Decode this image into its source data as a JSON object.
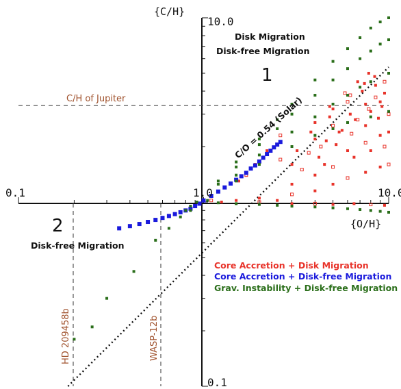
{
  "chart_data": {
    "type": "scatter",
    "x_axis": {
      "label": "{O/H}",
      "scale": "log",
      "range": [
        0.1,
        10.0
      ],
      "ticks": [
        "0.1",
        "1.0",
        "10.0"
      ]
    },
    "y_axis": {
      "label": "{C/H}",
      "scale": "log",
      "range": [
        0.1,
        10.0
      ],
      "ticks": [
        "10.0",
        "1.0",
        "0.1"
      ]
    },
    "annotations": {
      "upper_title_1": "Disk Migration",
      "upper_title_2": "Disk-free Migration",
      "region_1": "1",
      "region_2": "2",
      "lower_left": "Disk-free Migration",
      "solar_line": "C/O = 0.54 (Solar)",
      "jupiter": "C/H of Jupiter",
      "hd": "HD 209458b",
      "wasp": "WASP-12b"
    },
    "reference_lines": {
      "jupiter_ch": 3.0,
      "hd_209458b_oh": 0.2,
      "wasp_12b_oh": 0.6,
      "solar_co": 0.54
    },
    "legend": [
      {
        "label": "Core Accretion + Disk Migration",
        "color": "#e8332a"
      },
      {
        "label": "Core Accretion + Disk-free Migration",
        "color": "#1a1adc"
      },
      {
        "label": "Grav. Instability + Disk-free Migration",
        "color": "#2a6e1a"
      }
    ],
    "series": [
      {
        "name": "Core Accretion + Disk Migration",
        "color": "#e8332a",
        "points": [
          [
            1.1,
            1.02
          ],
          [
            1.25,
            1.0
          ],
          [
            1.5,
            1.02
          ],
          [
            2.0,
            1.0
          ],
          [
            2.5,
            1.02
          ],
          [
            3.0,
            0.98
          ],
          [
            4.0,
            0.98
          ],
          [
            5.0,
            0.97
          ],
          [
            6.5,
            0.98
          ],
          [
            8.0,
            0.97
          ],
          [
            9.5,
            0.96
          ],
          [
            2.0,
            1.05
          ],
          [
            3.0,
            1.1
          ],
          [
            4.0,
            1.15
          ],
          [
            5.0,
            1.25
          ],
          [
            6.0,
            1.35
          ],
          [
            7.5,
            1.45
          ],
          [
            9.0,
            1.55
          ],
          [
            10.0,
            1.6
          ],
          [
            3.0,
            1.25
          ],
          [
            4.0,
            1.4
          ],
          [
            5.0,
            1.55
          ],
          [
            6.5,
            1.75
          ],
          [
            8.0,
            1.9
          ],
          [
            9.5,
            2.0
          ],
          [
            4.5,
            1.6
          ],
          [
            6.0,
            1.9
          ],
          [
            7.5,
            2.1
          ],
          [
            9.0,
            2.3
          ],
          [
            10.0,
            2.4
          ],
          [
            2.6,
            1.7
          ],
          [
            3.2,
            1.9
          ],
          [
            4.0,
            2.2
          ],
          [
            5.0,
            2.6
          ],
          [
            6.2,
            3.0
          ],
          [
            7.5,
            3.4
          ],
          [
            8.5,
            3.7
          ],
          [
            9.5,
            3.9
          ],
          [
            3.0,
            1.6
          ],
          [
            3.7,
            1.85
          ],
          [
            4.6,
            2.15
          ],
          [
            5.6,
            2.45
          ],
          [
            6.8,
            2.8
          ],
          [
            8.0,
            3.1
          ],
          [
            9.2,
            3.3
          ],
          [
            3.4,
            1.5
          ],
          [
            4.2,
            1.75
          ],
          [
            5.2,
            2.05
          ],
          [
            6.3,
            2.35
          ],
          [
            7.5,
            2.6
          ],
          [
            8.8,
            2.85
          ],
          [
            10.0,
            3.0
          ],
          [
            3.8,
            2.4
          ],
          [
            4.8,
            2.9
          ],
          [
            6.0,
            3.5
          ],
          [
            7.2,
            4.0
          ],
          [
            8.5,
            4.3
          ],
          [
            9.5,
            4.5
          ],
          [
            4.0,
            2.7
          ],
          [
            5.0,
            3.2
          ],
          [
            6.2,
            3.8
          ],
          [
            7.4,
            4.4
          ],
          [
            8.4,
            4.8
          ],
          [
            4.3,
            2.0
          ],
          [
            5.4,
            2.4
          ],
          [
            6.6,
            2.8
          ],
          [
            7.8,
            3.2
          ],
          [
            9.0,
            3.5
          ],
          [
            4.8,
            3.3
          ],
          [
            5.8,
            3.9
          ],
          [
            6.8,
            4.5
          ],
          [
            7.8,
            5.0
          ],
          [
            2.6,
            2.3
          ],
          [
            2.2,
            1.9
          ],
          [
            1.9,
            1.6
          ],
          [
            1.7,
            1.4
          ],
          [
            1.55,
            1.3
          ]
        ]
      },
      {
        "name": "Core Accretion + Disk-free Migration",
        "color": "#1a1adc",
        "points": [
          [
            0.35,
            0.72
          ],
          [
            0.4,
            0.74
          ],
          [
            0.45,
            0.76
          ],
          [
            0.5,
            0.78
          ],
          [
            0.55,
            0.8
          ],
          [
            0.6,
            0.82
          ],
          [
            0.65,
            0.84
          ],
          [
            0.7,
            0.86
          ],
          [
            0.75,
            0.88
          ],
          [
            0.8,
            0.9
          ],
          [
            0.85,
            0.92
          ],
          [
            0.9,
            0.95
          ],
          [
            0.95,
            0.98
          ],
          [
            1.0,
            1.02
          ],
          [
            1.1,
            1.08
          ],
          [
            1.2,
            1.14
          ],
          [
            1.3,
            1.2
          ],
          [
            1.4,
            1.26
          ],
          [
            1.5,
            1.32
          ],
          [
            1.6,
            1.38
          ],
          [
            1.7,
            1.44
          ],
          [
            1.8,
            1.52
          ],
          [
            1.9,
            1.58
          ],
          [
            2.0,
            1.66
          ],
          [
            2.1,
            1.74
          ],
          [
            2.2,
            1.82
          ],
          [
            2.3,
            1.9
          ],
          [
            2.4,
            1.98
          ],
          [
            2.5,
            2.05
          ],
          [
            2.6,
            2.12
          ]
        ]
      },
      {
        "name": "Grav. Instability + Disk-free Migration",
        "color": "#2a6e1a",
        "points": [
          [
            0.2,
            0.18
          ],
          [
            0.25,
            0.21
          ],
          [
            0.3,
            0.3
          ],
          [
            0.42,
            0.42
          ],
          [
            0.55,
            0.62
          ],
          [
            0.65,
            0.72
          ],
          [
            0.75,
            0.83
          ],
          [
            0.85,
            0.9
          ],
          [
            1.05,
            1.02
          ],
          [
            1.2,
            0.99
          ],
          [
            1.5,
            0.98
          ],
          [
            2.0,
            0.97
          ],
          [
            2.5,
            0.96
          ],
          [
            3.0,
            0.95
          ],
          [
            4.0,
            0.94
          ],
          [
            5.0,
            0.93
          ],
          [
            6.0,
            0.92
          ],
          [
            7.0,
            0.91
          ],
          [
            8.0,
            0.9
          ],
          [
            9.0,
            0.89
          ],
          [
            10.0,
            0.88
          ],
          [
            1.2,
            1.3
          ],
          [
            1.5,
            1.65
          ],
          [
            2.0,
            2.2
          ],
          [
            2.5,
            2.8
          ],
          [
            3.0,
            3.4
          ],
          [
            4.0,
            4.6
          ],
          [
            5.0,
            5.8
          ],
          [
            6.0,
            6.8
          ],
          [
            7.0,
            7.8
          ],
          [
            8.0,
            8.8
          ],
          [
            9.0,
            9.5
          ],
          [
            10.0,
            10.0
          ],
          [
            1.2,
            1.25
          ],
          [
            1.5,
            1.55
          ],
          [
            2.0,
            2.05
          ],
          [
            2.5,
            2.5
          ],
          [
            3.0,
            3.0
          ],
          [
            4.0,
            3.8
          ],
          [
            5.0,
            4.6
          ],
          [
            6.0,
            5.3
          ],
          [
            7.0,
            6.0
          ],
          [
            8.0,
            6.6
          ],
          [
            9.0,
            7.2
          ],
          [
            10.0,
            7.6
          ],
          [
            1.5,
            1.4
          ],
          [
            2.0,
            1.8
          ],
          [
            3.0,
            2.4
          ],
          [
            4.0,
            2.9
          ],
          [
            5.0,
            3.4
          ],
          [
            6.0,
            3.8
          ],
          [
            7.0,
            4.2
          ],
          [
            8.0,
            4.5
          ],
          [
            10.0,
            5.0
          ],
          [
            1.5,
            1.3
          ],
          [
            2.0,
            1.6
          ],
          [
            3.0,
            2.0
          ],
          [
            4.0,
            2.3
          ],
          [
            5.0,
            2.5
          ],
          [
            6.0,
            2.7
          ],
          [
            8.0,
            2.9
          ],
          [
            10.0,
            3.1
          ],
          [
            0.8,
            0.9
          ],
          [
            0.85,
            0.95
          ],
          [
            0.92,
            1.0
          ]
        ]
      }
    ]
  }
}
